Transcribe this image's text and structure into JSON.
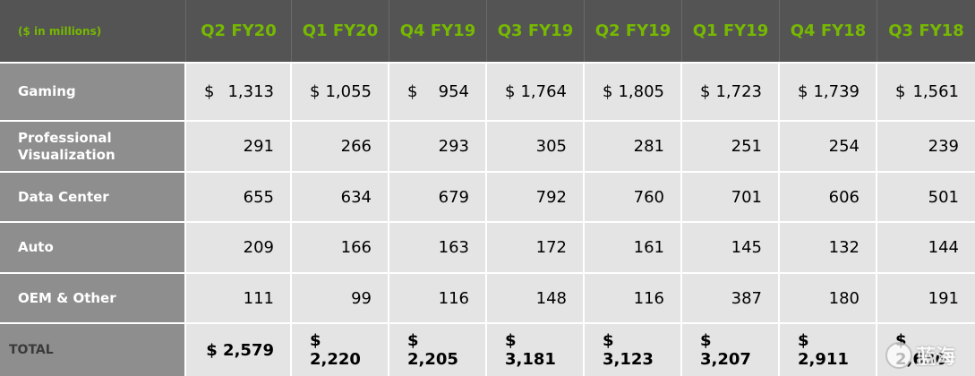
{
  "table": {
    "unit_label": "($ in millions)",
    "quarters": [
      "Q2 FY20",
      "Q1 FY20",
      "Q4 FY19",
      "Q3 FY19",
      "Q2 FY19",
      "Q1 FY19",
      "Q4 FY18",
      "Q3 FY18"
    ],
    "rows": [
      {
        "label": "Gaming",
        "dollar": "$",
        "values": [
          "1,313",
          "1,055",
          "954",
          "1,764",
          "1,805",
          "1,723",
          "1,739",
          "1,561"
        ]
      },
      {
        "label": "Professional Visualization",
        "dollar": "",
        "values": [
          "291",
          "266",
          "293",
          "305",
          "281",
          "251",
          "254",
          "239"
        ]
      },
      {
        "label": "Data Center",
        "dollar": "",
        "values": [
          "655",
          "634",
          "679",
          "792",
          "760",
          "701",
          "606",
          "501"
        ]
      },
      {
        "label": "Auto",
        "dollar": "",
        "values": [
          "209",
          "166",
          "163",
          "172",
          "161",
          "145",
          "132",
          "144"
        ]
      },
      {
        "label": "OEM & Other",
        "dollar": "",
        "values": [
          "111",
          "99",
          "116",
          "148",
          "116",
          "387",
          "180",
          "191"
        ]
      }
    ],
    "total": {
      "label": "TOTAL",
      "values": [
        "$ 2,579",
        "$ 2,220",
        "$ 2,205",
        "$ 3,181",
        "$ 3,123",
        "$ 3,207",
        "$ 2,911",
        "$ 2,636"
      ]
    }
  },
  "watermark": {
    "text": "蓝海"
  }
}
